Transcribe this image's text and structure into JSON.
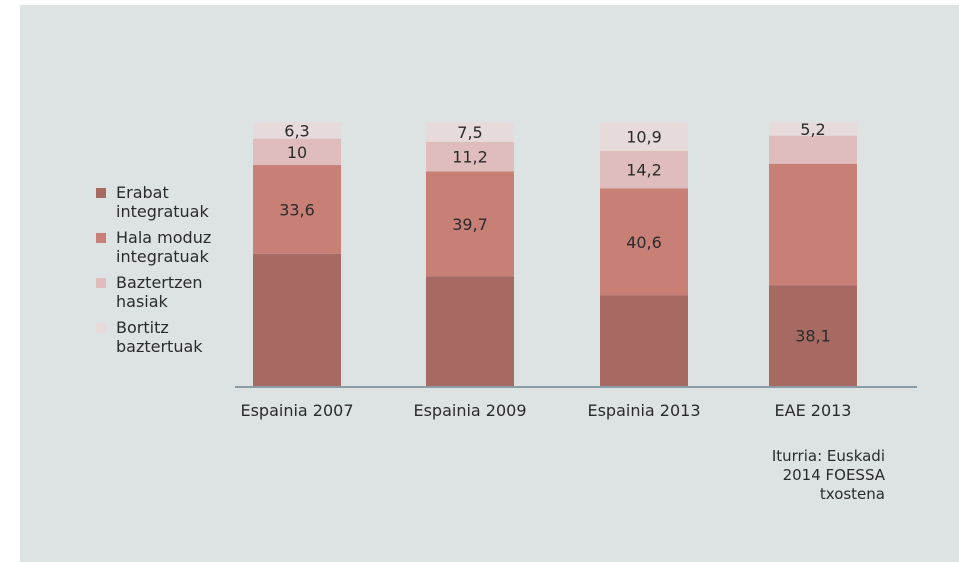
{
  "chart_data": {
    "type": "bar",
    "stacked": true,
    "categories": [
      "Espainia 2007",
      "Espainia 2009",
      "Espainia 2013",
      "EAE 2013"
    ],
    "series": [
      {
        "name": "Erabat integratuak",
        "values": [
          50.1,
          41.6,
          34.3,
          38.1
        ],
        "labels": [
          "",
          "",
          "",
          "38,1"
        ],
        "color": "#a66a63"
      },
      {
        "name": "Hala moduz integratuak",
        "values": [
          33.6,
          39.7,
          40.6,
          46.1
        ],
        "labels": [
          "33,6",
          "39,7",
          "40,6",
          ""
        ],
        "color": "#c77f76"
      },
      {
        "name": "Baztertzen hasiak",
        "values": [
          10,
          11.2,
          14.2,
          10.6
        ],
        "labels": [
          "10",
          "11,2",
          "14,2",
          ""
        ],
        "color": "#dfbdbc"
      },
      {
        "name": "Bortitz baztertuak",
        "values": [
          6.3,
          7.5,
          10.9,
          5.2
        ],
        "labels": [
          "6,3",
          "7,5",
          "10,9",
          "5,2"
        ],
        "color": "#e6dadb"
      }
    ],
    "ylim": [
      0,
      100
    ],
    "grid": false,
    "legend_position": "left"
  },
  "legend": [
    {
      "label": "Erabat\nintegratuak",
      "color": "#a66a63"
    },
    {
      "label": "Hala moduz\nintegratuak",
      "color": "#c77f76"
    },
    {
      "label": "Baztertzen\nhasiak",
      "color": "#dfbdbc"
    },
    {
      "label": "Bortitz\nbaztertuak",
      "color": "#e6dadb"
    }
  ],
  "source": "Iturria: Euskadi\n2014 FOESSA\ntxostena"
}
